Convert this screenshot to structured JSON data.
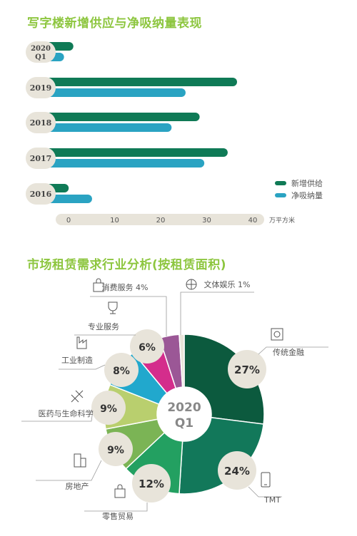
{
  "section1": {
    "title": "写字楼新增供应与净吸纳量表现"
  },
  "section2": {
    "title": "市场租赁需求行业分析(按租赁面积)"
  },
  "chart_data": [
    {
      "type": "bar",
      "orientation": "horizontal",
      "categories": [
        "2020 Q1",
        "2019",
        "2018",
        "2017",
        "2016"
      ],
      "category_lines": [
        [
          "2020",
          "Q1"
        ],
        [
          "2019"
        ],
        [
          "2018"
        ],
        [
          "2017"
        ],
        [
          "2016"
        ]
      ],
      "series": [
        {
          "name": "新增供给",
          "values": [
            5,
            40,
            32,
            38,
            4
          ],
          "color": "#0f7a56"
        },
        {
          "name": "净吸纳量",
          "values": [
            3,
            29,
            26,
            33,
            9
          ],
          "color": "#2aa3c2"
        }
      ],
      "xticks": [
        "0",
        "10",
        "20",
        "30",
        "40"
      ],
      "xlim": [
        0,
        40
      ],
      "unit": "万平方米",
      "legend_position": "right"
    },
    {
      "type": "pie",
      "center_label": [
        "2020",
        "Q1"
      ],
      "slices": [
        {
          "label": "传统金融",
          "value": 27,
          "pct": "27%",
          "color": "#0c5a3e",
          "icon": "safe-icon"
        },
        {
          "label": "TMT",
          "value": 24,
          "pct": "24%",
          "color": "#12785a",
          "icon": "phone-icon"
        },
        {
          "label": "零售贸易",
          "value": 12,
          "pct": "12%",
          "color": "#23a061",
          "icon": "shopping-bag-icon"
        },
        {
          "label": "房地产",
          "value": 9,
          "pct": "9%",
          "color": "#7bb455",
          "icon": "building-icon"
        },
        {
          "label": "医药与生命科学",
          "value": 9,
          "pct": "9%",
          "color": "#b9cf6e",
          "icon": "dna-icon"
        },
        {
          "label": "工业制造",
          "value": 8,
          "pct": "8%",
          "color": "#21a8cd",
          "icon": "factory-icon"
        },
        {
          "label": "专业服务",
          "value": 6,
          "pct": "6%",
          "color": "#d42d8c",
          "icon": "trophy-icon"
        },
        {
          "label": "消费服务 4%",
          "value": 4,
          "pct": "",
          "color": "#9b5796",
          "icon": "bag-icon"
        },
        {
          "label": "文体娱乐 1%",
          "value": 1,
          "pct": "",
          "color": "#e9e4d9",
          "icon": "ball-icon"
        }
      ]
    }
  ]
}
